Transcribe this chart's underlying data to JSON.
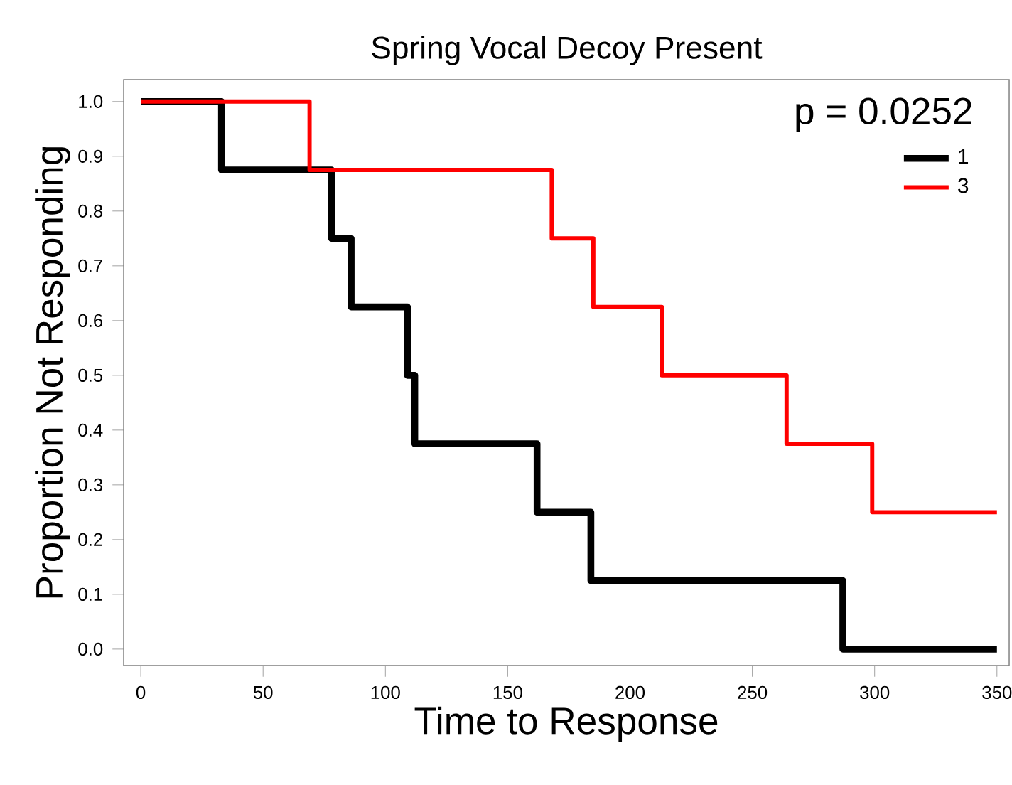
{
  "chart_data": {
    "type": "step",
    "title": "Spring Vocal  Decoy Present",
    "xlabel": "Time to Response",
    "ylabel": "Proportion Not Responding",
    "series": [
      {
        "name": "1",
        "color": "#000000",
        "x": [
          0,
          33,
          78,
          86,
          109,
          112,
          162,
          184,
          287,
          350
        ],
        "values": [
          1.0,
          0.875,
          0.75,
          0.625,
          0.5,
          0.375,
          0.25,
          0.125,
          0.0,
          0.0
        ]
      },
      {
        "name": "3",
        "color": "#ff0000",
        "x": [
          0,
          69,
          168,
          185,
          213,
          264,
          299,
          350
        ],
        "values": [
          1.0,
          0.875,
          0.75,
          0.625,
          0.5,
          0.375,
          0.25,
          0.25
        ]
      }
    ],
    "xlim": [
      -7,
      355
    ],
    "ylim": [
      -0.03,
      1.04
    ],
    "xticks": [
      0,
      50,
      100,
      150,
      200,
      250,
      300,
      350
    ],
    "yticks": [
      {
        "value": 0,
        "label": "0.0"
      },
      {
        "value": 0.1,
        "label": "0.1"
      },
      {
        "value": 0.2,
        "label": "0.2"
      },
      {
        "value": 0.3,
        "label": "0.3"
      },
      {
        "value": 0.4,
        "label": "0.4"
      },
      {
        "value": 0.5,
        "label": "0.5"
      },
      {
        "value": 0.6,
        "label": "0.6"
      },
      {
        "value": 0.7,
        "label": "0.7"
      },
      {
        "value": 0.8,
        "label": "0.8"
      },
      {
        "value": 0.9,
        "label": "0.9"
      },
      {
        "value": 1.0,
        "label": "1.0"
      }
    ],
    "annotations": [
      "p = 0.0252"
    ],
    "legend": "top right",
    "grid": false
  }
}
